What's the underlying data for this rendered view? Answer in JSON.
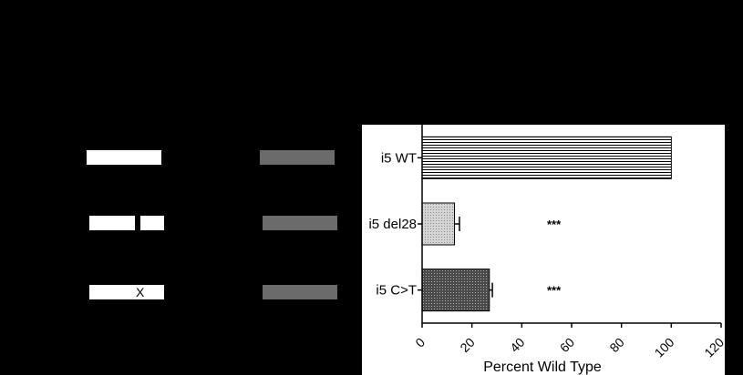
{
  "constructs": [
    {
      "id": "wt",
      "mutation_mark": ""
    },
    {
      "id": "del28",
      "mutation_mark": ""
    },
    {
      "id": "c_to_t",
      "mutation_mark": "X"
    }
  ],
  "chart_data": {
    "type": "bar",
    "orientation": "horizontal",
    "categories": [
      "i5 WT",
      "i5 del28",
      "i5 C>T"
    ],
    "values": [
      100,
      13,
      27
    ],
    "errors": [
      0,
      2,
      1.2
    ],
    "significance": [
      "",
      "***",
      "***"
    ],
    "xlabel": "Percent Wild Type",
    "xlim": [
      0,
      120
    ],
    "xticks": [
      0,
      20,
      40,
      60,
      80,
      100,
      120
    ],
    "grid": false,
    "legend": "none",
    "fill_patterns": [
      "horizontal-lines",
      "light-dots",
      "dense-crosshatch"
    ],
    "bar_stroke": "#000000"
  }
}
